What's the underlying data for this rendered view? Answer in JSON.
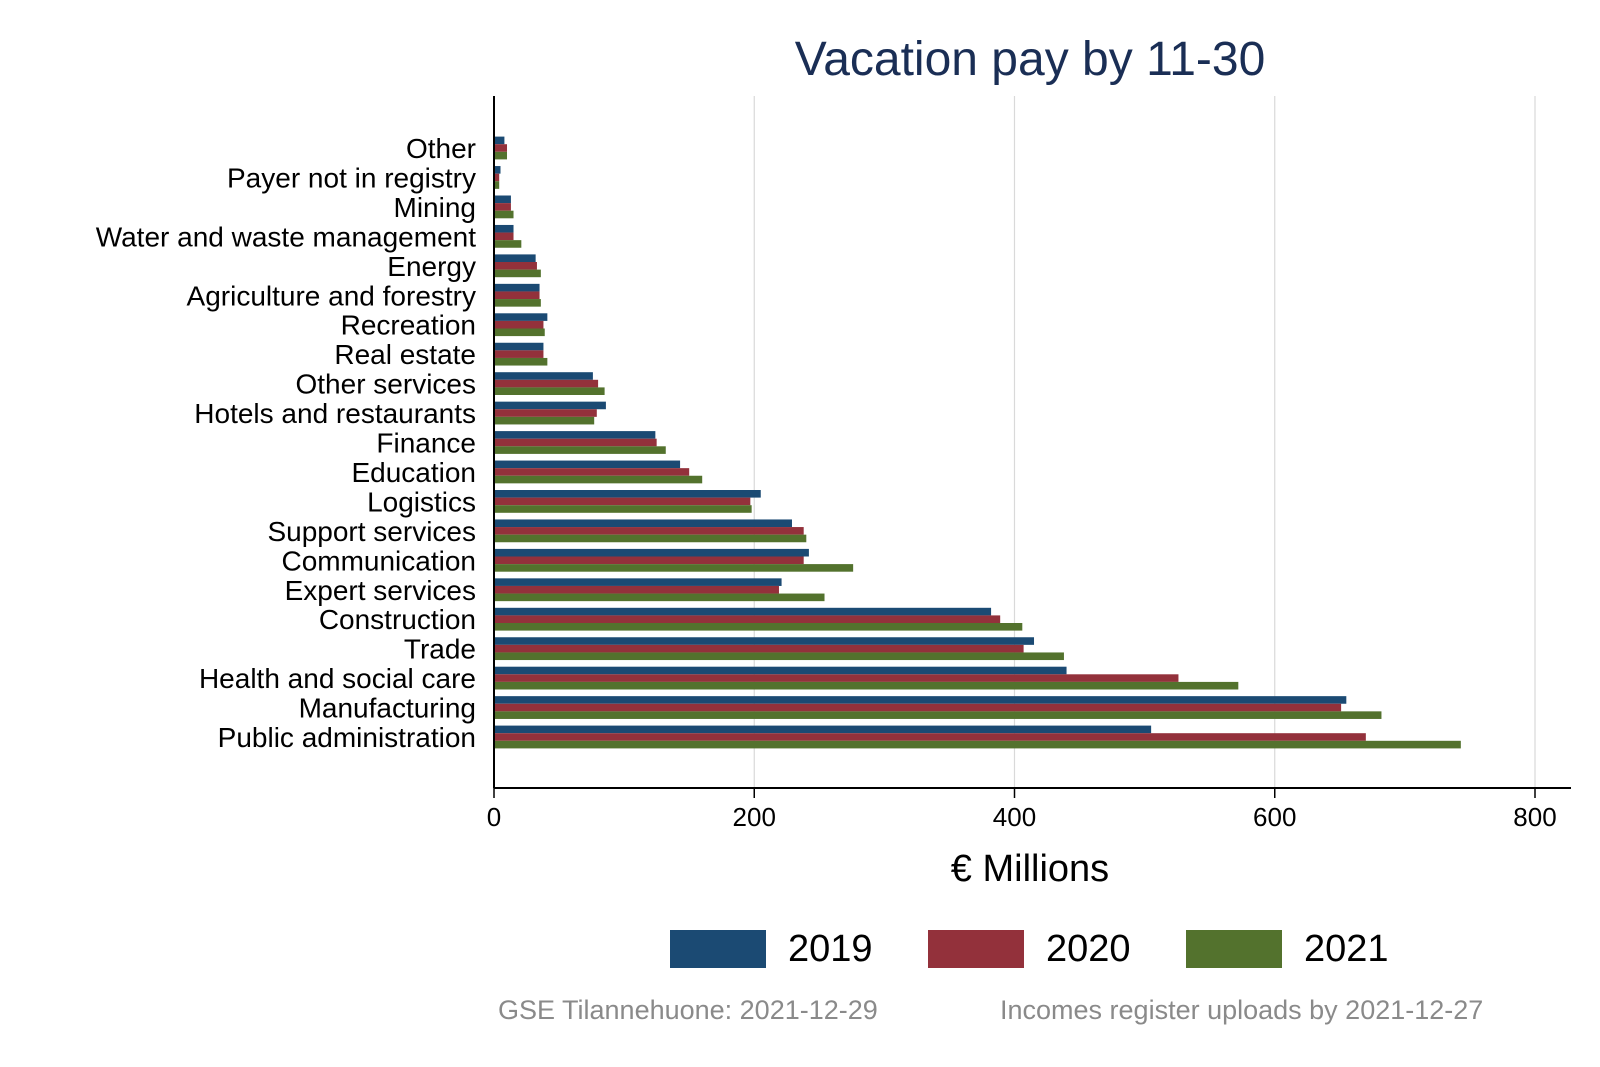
{
  "chart_data": {
    "type": "bar",
    "orientation": "horizontal",
    "title": "Vacation pay by 11-30",
    "xlabel": "€ Millions",
    "ylabel": "",
    "xlim": [
      0,
      820
    ],
    "xticks": [
      0,
      200,
      400,
      600,
      800
    ],
    "grid": true,
    "legend_position": "bottom",
    "categories": [
      "Other",
      "Payer not in registry",
      "Mining",
      "Water and waste management",
      "Energy",
      "Agriculture and forestry",
      "Recreation",
      "Real estate",
      "Other services",
      "Hotels and restaurants",
      "Finance",
      "Education",
      "Logistics",
      "Support services",
      "Communication",
      "Expert services",
      "Construction",
      "Trade",
      "Health and social care",
      "Manufacturing",
      "Public administration"
    ],
    "series": [
      {
        "name": "2019",
        "color": "#1b4a73",
        "values": [
          8,
          5,
          13,
          15,
          32,
          35,
          41,
          38,
          76,
          86,
          124,
          143,
          205,
          229,
          242,
          221,
          382,
          415,
          440,
          655,
          505
        ]
      },
      {
        "name": "2020",
        "color": "#93313b",
        "values": [
          10,
          4,
          13,
          15,
          33,
          35,
          38,
          38,
          80,
          79,
          125,
          150,
          197,
          238,
          238,
          219,
          389,
          407,
          526,
          651,
          670
        ]
      },
      {
        "name": "2021",
        "color": "#53722d",
        "values": [
          10,
          4,
          15,
          21,
          36,
          36,
          39,
          41,
          85,
          77,
          132,
          160,
          198,
          240,
          276,
          254,
          406,
          438,
          572,
          682,
          743
        ]
      }
    ]
  },
  "footer": {
    "left": "GSE Tilannehuone: 2021-12-29",
    "right": "Incomes register uploads by 2021-12-27"
  }
}
